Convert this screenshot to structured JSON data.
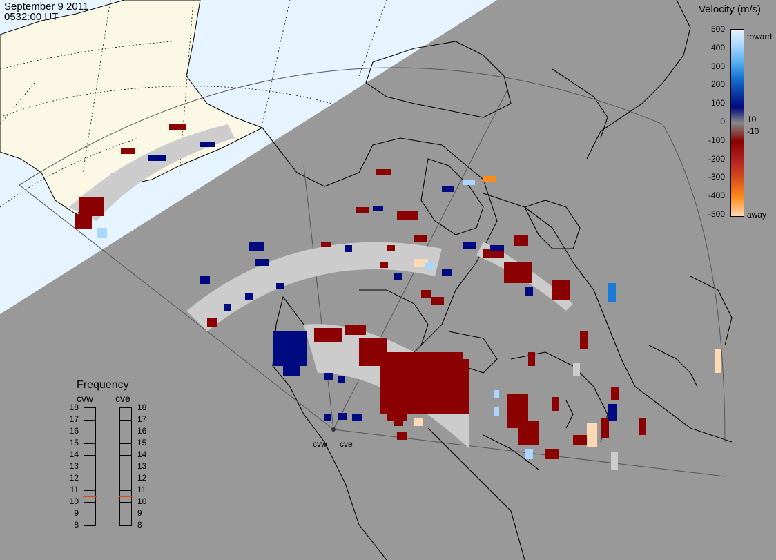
{
  "header": {
    "date": "September  9 2011",
    "time": "0532:00 UT"
  },
  "colorbar": {
    "title": "Velocity (m/s)",
    "ticks": [
      "500",
      "400",
      "300",
      "200",
      "100",
      "0",
      "-100",
      "-200",
      "-300",
      "-400",
      "-500"
    ],
    "toward_label": "toward",
    "away_label": "away",
    "threshold_pos": "10",
    "threshold_neg": "-10",
    "colors": [
      "#e6f2ff",
      "#a8d8ff",
      "#5fb3f0",
      "#1a7ad9",
      "#0a3fa6",
      "#000a80",
      "#8b0000",
      "#b22222",
      "#d94f1a",
      "#ff8c1a",
      "#ffd9b3"
    ]
  },
  "frequency_panel": {
    "title": "Frequency",
    "radars": [
      {
        "name": "cvw",
        "freq_mhz": 10.5
      },
      {
        "name": "cve",
        "freq_mhz": 10.5
      }
    ],
    "scale": [
      "18",
      "17",
      "16",
      "15",
      "14",
      "13",
      "12",
      "11",
      "10",
      "9",
      "8"
    ]
  },
  "radar_sites": [
    {
      "name": "cvw"
    },
    {
      "name": "cve"
    }
  ],
  "palette": {
    "ocean_day": "#e6f4ff",
    "land_day": "#fbf8e6",
    "night": "#999999",
    "ground_scatter": "#cccccc",
    "coast": "#000000"
  }
}
